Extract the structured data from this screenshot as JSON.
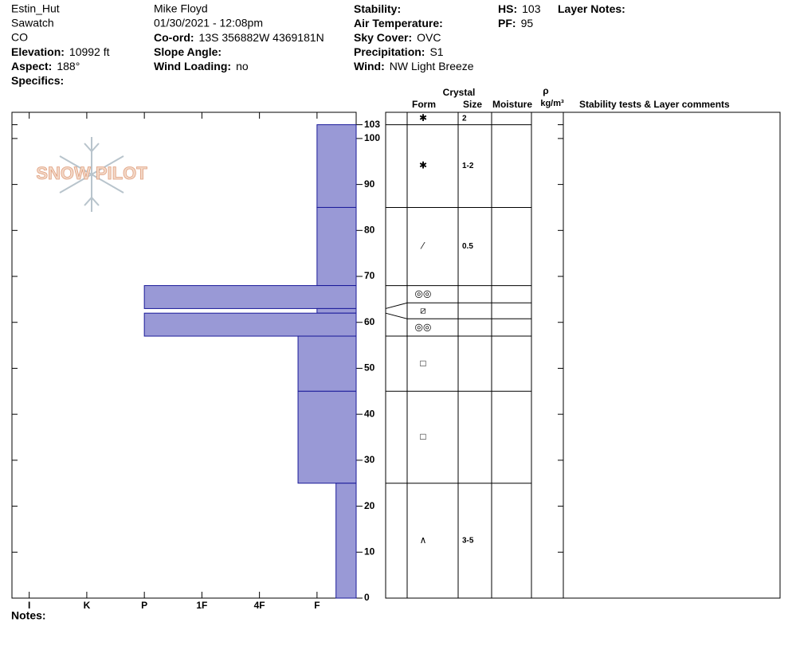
{
  "header": {
    "columns": [
      [
        "Estin_Hut",
        "Sawatch",
        "CO",
        {
          "label": "Elevation:",
          "value": "10992 ft"
        },
        {
          "label": "Aspect:",
          "value": "188°"
        },
        {
          "label": "Specifics:"
        }
      ],
      [
        "Mike Floyd",
        "01/30/2021 - 12:08pm",
        {
          "label": "Co-ord:",
          "value": "13S 356882W 4369181N"
        },
        {
          "label": "Slope Angle:"
        },
        {
          "label": "Wind Loading:",
          "value": "no"
        }
      ],
      [
        {
          "label": "Stability:"
        },
        {
          "label": "Air Temperature:"
        },
        {
          "label": "Sky Cover:",
          "value": "OVC"
        },
        {
          "label": "Precipitation:",
          "value": "S1"
        },
        {
          "label": "Wind:",
          "value": "NW Light Breeze"
        }
      ],
      [
        {
          "label": "HS:",
          "value": "103"
        },
        {
          "label": "PF:",
          "value": "95"
        }
      ],
      [
        {
          "label": "Layer Notes:"
        }
      ]
    ]
  },
  "logo_text": "SNOW PILOT",
  "notes_label": "Notes:",
  "chart_data": {
    "type": "bar",
    "ylim": [
      0,
      105.7
    ],
    "yticks": [
      0,
      10,
      20,
      30,
      40,
      50,
      60,
      70,
      80,
      90,
      100,
      103
    ],
    "xlim": [
      6.3,
      0.32
    ],
    "xticks": [
      {
        "value": 6,
        "label": "I"
      },
      {
        "value": 5,
        "label": "K"
      },
      {
        "value": 4,
        "label": "P"
      },
      {
        "value": 3,
        "label": "1F"
      },
      {
        "value": 2,
        "label": "4F"
      },
      {
        "value": 1,
        "label": "F"
      }
    ],
    "color": "#9999d6",
    "edge_color": "#1a1a99",
    "table_headers": {
      "crystal": "Crystal",
      "form": "Form",
      "size": "Size",
      "moisture": "Moisture",
      "rho": "ρ",
      "density_unit": "kg/m³",
      "comments": "Stability tests & Layer comments"
    },
    "layers": [
      {
        "top": 103,
        "bottom": 103,
        "form": "✱",
        "size": "2"
      },
      {
        "top": 103,
        "bottom": 85,
        "hardness": 1,
        "form": "✱",
        "size": "1-2"
      },
      {
        "top": 85,
        "bottom": 68,
        "hardness": 1,
        "form": "⁄",
        "size": "0.5"
      },
      {
        "top": 68,
        "bottom": 63,
        "hardness": 4,
        "form": "◎◎"
      },
      {
        "top": 63,
        "bottom": 62,
        "hardness": 1,
        "form": "⧄"
      },
      {
        "top": 62,
        "bottom": 57,
        "hardness": 4,
        "form": "◎◎"
      },
      {
        "top": 57,
        "bottom": 45,
        "hardness": 1.33,
        "form": "□"
      },
      {
        "top": 45,
        "bottom": 25,
        "hardness": 1.33,
        "form": "□"
      },
      {
        "top": 25,
        "bottom": 0,
        "hardness": 0.67,
        "form": "∧",
        "size": "3-5"
      }
    ]
  }
}
